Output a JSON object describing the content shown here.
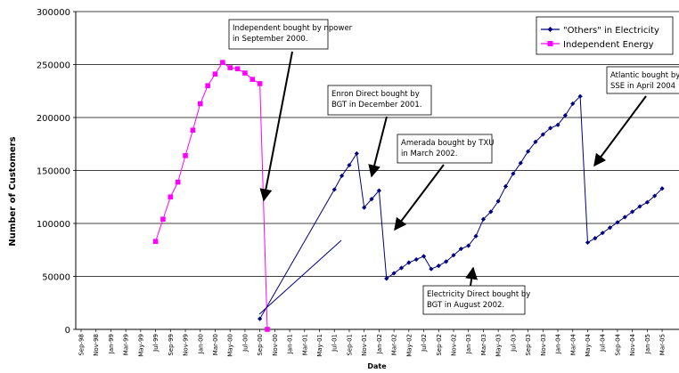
{
  "chart_data": {
    "type": "line",
    "xlabel": "Date",
    "ylabel": "Number of Customers",
    "ylim": [
      0,
      300000
    ],
    "yticks": [
      "0",
      "50000",
      "100000",
      "150000",
      "200000",
      "250000",
      "300000"
    ],
    "grid": "horizontal",
    "legend_position": "top-right",
    "x_tick_labels": [
      "Sep-98",
      "Nov-98",
      "Jan-99",
      "Mar-99",
      "May-99",
      "Jul-99",
      "Sep-99",
      "Nov-99",
      "Jan-00",
      "Mar-00",
      "May-00",
      "Jul-00",
      "Sep-00",
      "Nov-00",
      "Jan-01",
      "Mar-01",
      "May-01",
      "Jul-01",
      "Sep-01",
      "Nov-01",
      "Jan-02",
      "Mar-02",
      "May-02",
      "Jul-02",
      "Sep-02",
      "Nov-02",
      "Jan-03",
      "Mar-03",
      "May-03",
      "Jul-03",
      "Sep-03",
      "Nov-03",
      "Jan-04",
      "Mar-04",
      "May-04",
      "Jul-04",
      "Sep-04",
      "Nov-04",
      "Jan-05",
      "Mar-05"
    ],
    "series": [
      {
        "name": "\"Others\" in Electricity",
        "color": "#000080",
        "marker": "diamond",
        "x_start": "Sep-00",
        "gaps_months": [
          10
        ],
        "values": [
          10000,
          132000,
          145000,
          155000,
          166000,
          115000,
          123000,
          131000,
          48000,
          53000,
          58000,
          63000,
          66000,
          69000,
          57000,
          60000,
          64000,
          70000,
          76000,
          79000,
          88000,
          104000,
          111000,
          121000,
          135000,
          147000,
          157000,
          168000,
          177000,
          184000,
          190000,
          193000,
          202000,
          213000,
          220000,
          82000,
          86000,
          91000,
          96000,
          101000,
          106000,
          111000,
          116000,
          120000,
          126000,
          133000
        ]
      },
      {
        "name": "Independent Energy",
        "color": "#FF00FF",
        "marker": "square",
        "x_start": "Jul-99",
        "values": [
          83000,
          104000,
          125000,
          139000,
          164000,
          188000,
          213000,
          230000,
          241000,
          252000,
          247000,
          246000,
          242000,
          236000,
          232000,
          0
        ]
      }
    ],
    "annotations": [
      {
        "id": "npower",
        "lines": [
          "Independent bought by npower",
          "in September 2000."
        ]
      },
      {
        "id": "enron",
        "lines": [
          "Enron Direct bought by",
          "BGT in December 2001."
        ]
      },
      {
        "id": "amerada",
        "lines": [
          "Amerada bought by TXU",
          "in March 2002."
        ]
      },
      {
        "id": "elecdirect",
        "lines": [
          "Electricity Direct bought by",
          "BGT in August 2002."
        ]
      },
      {
        "id": "atlantic",
        "lines": [
          "Atlantic bought by",
          "SSE in April 2004"
        ]
      }
    ]
  }
}
